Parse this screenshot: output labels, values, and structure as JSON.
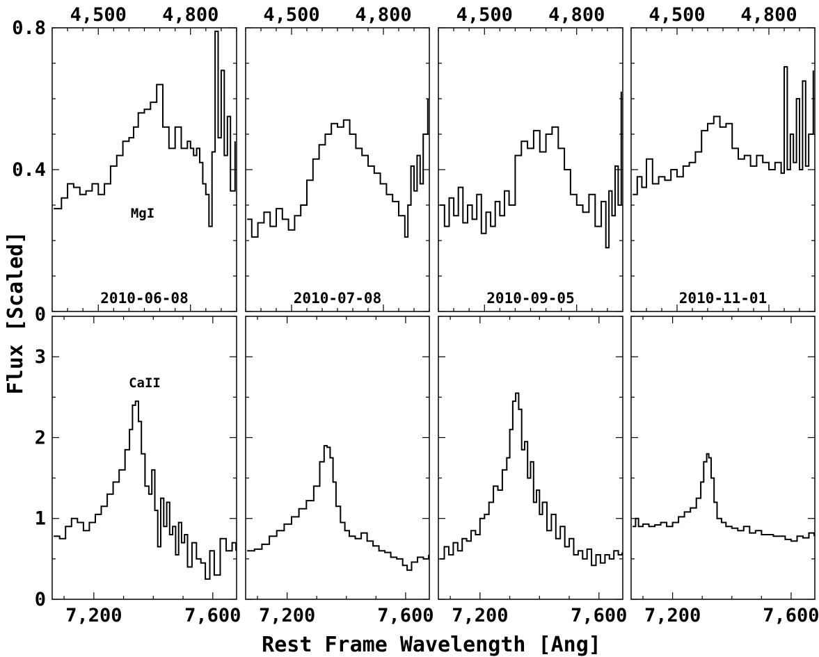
{
  "figure": {
    "ylabel": "Flux [Scaled]",
    "xlabel": "Rest Frame Wavelength [Ang]"
  },
  "chart_data": [
    {
      "type": "line",
      "row": "top",
      "column": 1,
      "line_label": "MgI",
      "date": "2010-06-08",
      "xlim": [
        4350,
        4950
      ],
      "ylim": [
        0,
        0.8
      ],
      "x_ticks": [
        4500,
        4800
      ],
      "x_tick_labels": [
        "4,500",
        "4,800"
      ],
      "y_ticks": [
        0,
        0.4,
        0.8
      ],
      "y_tick_labels": [
        "0",
        "0.4",
        "0.8"
      ],
      "series": [
        {
          "x": [
            4355,
            4380,
            4400,
            4420,
            4440,
            4460,
            4480,
            4500,
            4520,
            4540,
            4560,
            4580,
            4600,
            4615,
            4630,
            4650,
            4670,
            4690,
            4710,
            4730,
            4750,
            4770,
            4790,
            4800,
            4810,
            4820,
            4830,
            4840,
            4850,
            4860,
            4870,
            4880,
            4890,
            4900,
            4910,
            4920,
            4930,
            4945
          ],
          "y": [
            0.29,
            0.32,
            0.36,
            0.35,
            0.33,
            0.34,
            0.36,
            0.33,
            0.36,
            0.41,
            0.44,
            0.48,
            0.49,
            0.52,
            0.56,
            0.57,
            0.59,
            0.64,
            0.52,
            0.46,
            0.52,
            0.46,
            0.48,
            0.46,
            0.44,
            0.46,
            0.42,
            0.36,
            0.33,
            0.24,
            0.45,
            0.79,
            0.49,
            0.68,
            0.44,
            0.55,
            0.34,
            0.48
          ]
        }
      ]
    },
    {
      "type": "line",
      "row": "top",
      "column": 2,
      "date": "2010-07-08",
      "xlim": [
        4350,
        4950
      ],
      "ylim": [
        0,
        0.8
      ],
      "x_ticks": [
        4500,
        4800
      ],
      "x_tick_labels": [
        "4,500",
        "4,800"
      ],
      "series": [
        {
          "x": [
            4355,
            4370,
            4390,
            4410,
            4430,
            4450,
            4470,
            4490,
            4510,
            4530,
            4550,
            4570,
            4590,
            4610,
            4630,
            4650,
            4670,
            4690,
            4710,
            4730,
            4750,
            4770,
            4790,
            4810,
            4830,
            4850,
            4870,
            4880,
            4890,
            4900,
            4910,
            4920,
            4930,
            4945
          ],
          "y": [
            0.26,
            0.21,
            0.25,
            0.28,
            0.24,
            0.29,
            0.26,
            0.23,
            0.27,
            0.3,
            0.37,
            0.43,
            0.47,
            0.5,
            0.53,
            0.52,
            0.54,
            0.5,
            0.46,
            0.44,
            0.41,
            0.39,
            0.36,
            0.33,
            0.31,
            0.27,
            0.21,
            0.3,
            0.41,
            0.34,
            0.44,
            0.36,
            0.5,
            0.6
          ]
        }
      ]
    },
    {
      "type": "line",
      "row": "top",
      "column": 3,
      "date": "2010-09-05",
      "xlim": [
        4350,
        4950
      ],
      "ylim": [
        0,
        0.8
      ],
      "x_ticks": [
        4500,
        4800
      ],
      "x_tick_labels": [
        "4,500",
        "4,800"
      ],
      "series": [
        {
          "x": [
            4355,
            4370,
            4385,
            4400,
            4415,
            4430,
            4445,
            4460,
            4475,
            4490,
            4505,
            4520,
            4535,
            4550,
            4565,
            4580,
            4600,
            4620,
            4640,
            4660,
            4680,
            4700,
            4720,
            4740,
            4760,
            4780,
            4800,
            4820,
            4840,
            4860,
            4880,
            4895,
            4905,
            4915,
            4925,
            4935,
            4945
          ],
          "y": [
            0.3,
            0.24,
            0.32,
            0.27,
            0.35,
            0.25,
            0.3,
            0.26,
            0.33,
            0.22,
            0.28,
            0.24,
            0.31,
            0.27,
            0.34,
            0.3,
            0.44,
            0.48,
            0.46,
            0.51,
            0.45,
            0.5,
            0.52,
            0.46,
            0.4,
            0.33,
            0.3,
            0.28,
            0.33,
            0.24,
            0.31,
            0.18,
            0.34,
            0.27,
            0.41,
            0.3,
            0.62
          ]
        }
      ]
    },
    {
      "type": "line",
      "row": "top",
      "column": 4,
      "date": "2010-11-01",
      "xlim": [
        4350,
        4950
      ],
      "ylim": [
        0,
        0.8
      ],
      "x_ticks": [
        4500,
        4800
      ],
      "x_tick_labels": [
        "4,500",
        "4,800"
      ],
      "series": [
        {
          "x": [
            4355,
            4370,
            4385,
            4400,
            4420,
            4440,
            4460,
            4480,
            4500,
            4520,
            4540,
            4560,
            4580,
            4600,
            4620,
            4640,
            4660,
            4680,
            4700,
            4720,
            4740,
            4760,
            4780,
            4800,
            4820,
            4840,
            4850,
            4860,
            4870,
            4880,
            4890,
            4900,
            4910,
            4920,
            4930,
            4945
          ],
          "y": [
            0.33,
            0.38,
            0.35,
            0.43,
            0.36,
            0.38,
            0.37,
            0.4,
            0.38,
            0.41,
            0.42,
            0.45,
            0.51,
            0.53,
            0.55,
            0.52,
            0.53,
            0.46,
            0.43,
            0.44,
            0.41,
            0.44,
            0.42,
            0.4,
            0.42,
            0.39,
            0.69,
            0.4,
            0.5,
            0.42,
            0.6,
            0.4,
            0.65,
            0.41,
            0.5,
            0.68
          ]
        }
      ]
    },
    {
      "type": "line",
      "row": "bottom",
      "column": 1,
      "line_label": "CaII",
      "xlim": [
        7060,
        7680
      ],
      "ylim": [
        0,
        3.5
      ],
      "x_ticks": [
        7200,
        7600
      ],
      "x_tick_labels": [
        "7,200",
        "7,600"
      ],
      "y_ticks": [
        0,
        1,
        2,
        3
      ],
      "y_tick_labels": [
        "0",
        "1",
        "2",
        "3"
      ],
      "series": [
        {
          "x": [
            7065,
            7085,
            7105,
            7125,
            7145,
            7165,
            7185,
            7205,
            7225,
            7245,
            7265,
            7285,
            7305,
            7320,
            7330,
            7340,
            7350,
            7360,
            7372,
            7385,
            7395,
            7405,
            7415,
            7425,
            7435,
            7445,
            7455,
            7465,
            7475,
            7485,
            7495,
            7505,
            7515,
            7530,
            7545,
            7560,
            7575,
            7590,
            7605,
            7625,
            7645,
            7665,
            7678
          ],
          "y": [
            0.78,
            0.75,
            0.9,
            1.0,
            0.95,
            0.85,
            0.95,
            1.05,
            1.15,
            1.3,
            1.45,
            1.6,
            1.85,
            2.1,
            2.4,
            2.45,
            2.2,
            1.8,
            1.4,
            1.3,
            1.6,
            1.1,
            0.65,
            1.25,
            0.9,
            1.2,
            0.8,
            0.9,
            0.55,
            0.95,
            0.7,
            0.8,
            0.4,
            0.7,
            0.5,
            0.45,
            0.25,
            0.6,
            0.3,
            0.75,
            0.6,
            0.7,
            0.6
          ]
        }
      ]
    },
    {
      "type": "line",
      "row": "bottom",
      "column": 2,
      "xlim": [
        7060,
        7680
      ],
      "ylim": [
        0,
        3.5
      ],
      "x_ticks": [
        7200,
        7600
      ],
      "x_tick_labels": [
        "7,200",
        "7,600"
      ],
      "series": [
        {
          "x": [
            7065,
            7090,
            7115,
            7140,
            7165,
            7190,
            7215,
            7240,
            7265,
            7290,
            7310,
            7325,
            7335,
            7345,
            7355,
            7365,
            7380,
            7395,
            7410,
            7430,
            7450,
            7470,
            7490,
            7510,
            7530,
            7550,
            7570,
            7590,
            7605,
            7620,
            7640,
            7660,
            7678
          ],
          "y": [
            0.6,
            0.62,
            0.68,
            0.78,
            0.85,
            0.93,
            1.02,
            1.12,
            1.22,
            1.4,
            1.7,
            1.9,
            1.88,
            1.75,
            1.45,
            1.15,
            0.95,
            0.85,
            0.78,
            0.75,
            0.82,
            0.72,
            0.66,
            0.6,
            0.58,
            0.52,
            0.5,
            0.42,
            0.36,
            0.46,
            0.52,
            0.5,
            0.55
          ]
        }
      ]
    },
    {
      "type": "line",
      "row": "bottom",
      "column": 3,
      "xlim": [
        7060,
        7680
      ],
      "ylim": [
        0,
        3.5
      ],
      "x_ticks": [
        7200,
        7600
      ],
      "x_tick_labels": [
        "7,200",
        "7,600"
      ],
      "series": [
        {
          "x": [
            7065,
            7080,
            7095,
            7110,
            7125,
            7140,
            7155,
            7170,
            7185,
            7200,
            7215,
            7230,
            7245,
            7260,
            7275,
            7290,
            7300,
            7310,
            7320,
            7330,
            7340,
            7350,
            7360,
            7370,
            7380,
            7390,
            7400,
            7410,
            7425,
            7440,
            7455,
            7470,
            7485,
            7500,
            7515,
            7530,
            7545,
            7560,
            7575,
            7590,
            7605,
            7620,
            7635,
            7650,
            7665,
            7678
          ],
          "y": [
            0.5,
            0.65,
            0.55,
            0.7,
            0.6,
            0.75,
            0.72,
            0.85,
            0.8,
            1.0,
            1.05,
            1.2,
            1.4,
            1.35,
            1.6,
            1.75,
            2.1,
            2.45,
            2.55,
            2.35,
            1.85,
            1.95,
            1.5,
            1.7,
            1.2,
            1.35,
            1.05,
            1.2,
            0.85,
            1.05,
            0.75,
            0.9,
            0.65,
            0.75,
            0.55,
            0.6,
            0.5,
            0.62,
            0.42,
            0.55,
            0.45,
            0.55,
            0.5,
            0.6,
            0.55,
            0.58
          ]
        }
      ]
    },
    {
      "type": "line",
      "row": "bottom",
      "column": 4,
      "xlim": [
        7060,
        7680
      ],
      "ylim": [
        0,
        3.5
      ],
      "x_ticks": [
        7200,
        7600
      ],
      "x_tick_labels": [
        "7,200",
        "7,600"
      ],
      "series": [
        {
          "x": [
            7065,
            7075,
            7085,
            7100,
            7120,
            7140,
            7160,
            7180,
            7200,
            7220,
            7240,
            7260,
            7280,
            7295,
            7305,
            7315,
            7322,
            7330,
            7340,
            7350,
            7365,
            7380,
            7400,
            7420,
            7440,
            7460,
            7480,
            7500,
            7520,
            7540,
            7560,
            7580,
            7600,
            7620,
            7640,
            7660,
            7678
          ],
          "y": [
            0.9,
            1.0,
            0.9,
            0.93,
            0.9,
            0.92,
            0.95,
            0.9,
            0.95,
            1.02,
            1.08,
            1.13,
            1.25,
            1.45,
            1.7,
            1.8,
            1.75,
            1.5,
            1.2,
            1.0,
            0.95,
            0.9,
            0.88,
            0.85,
            0.9,
            0.82,
            0.85,
            0.8,
            0.8,
            0.78,
            0.78,
            0.74,
            0.72,
            0.78,
            0.76,
            0.82,
            0.78
          ]
        }
      ]
    }
  ]
}
